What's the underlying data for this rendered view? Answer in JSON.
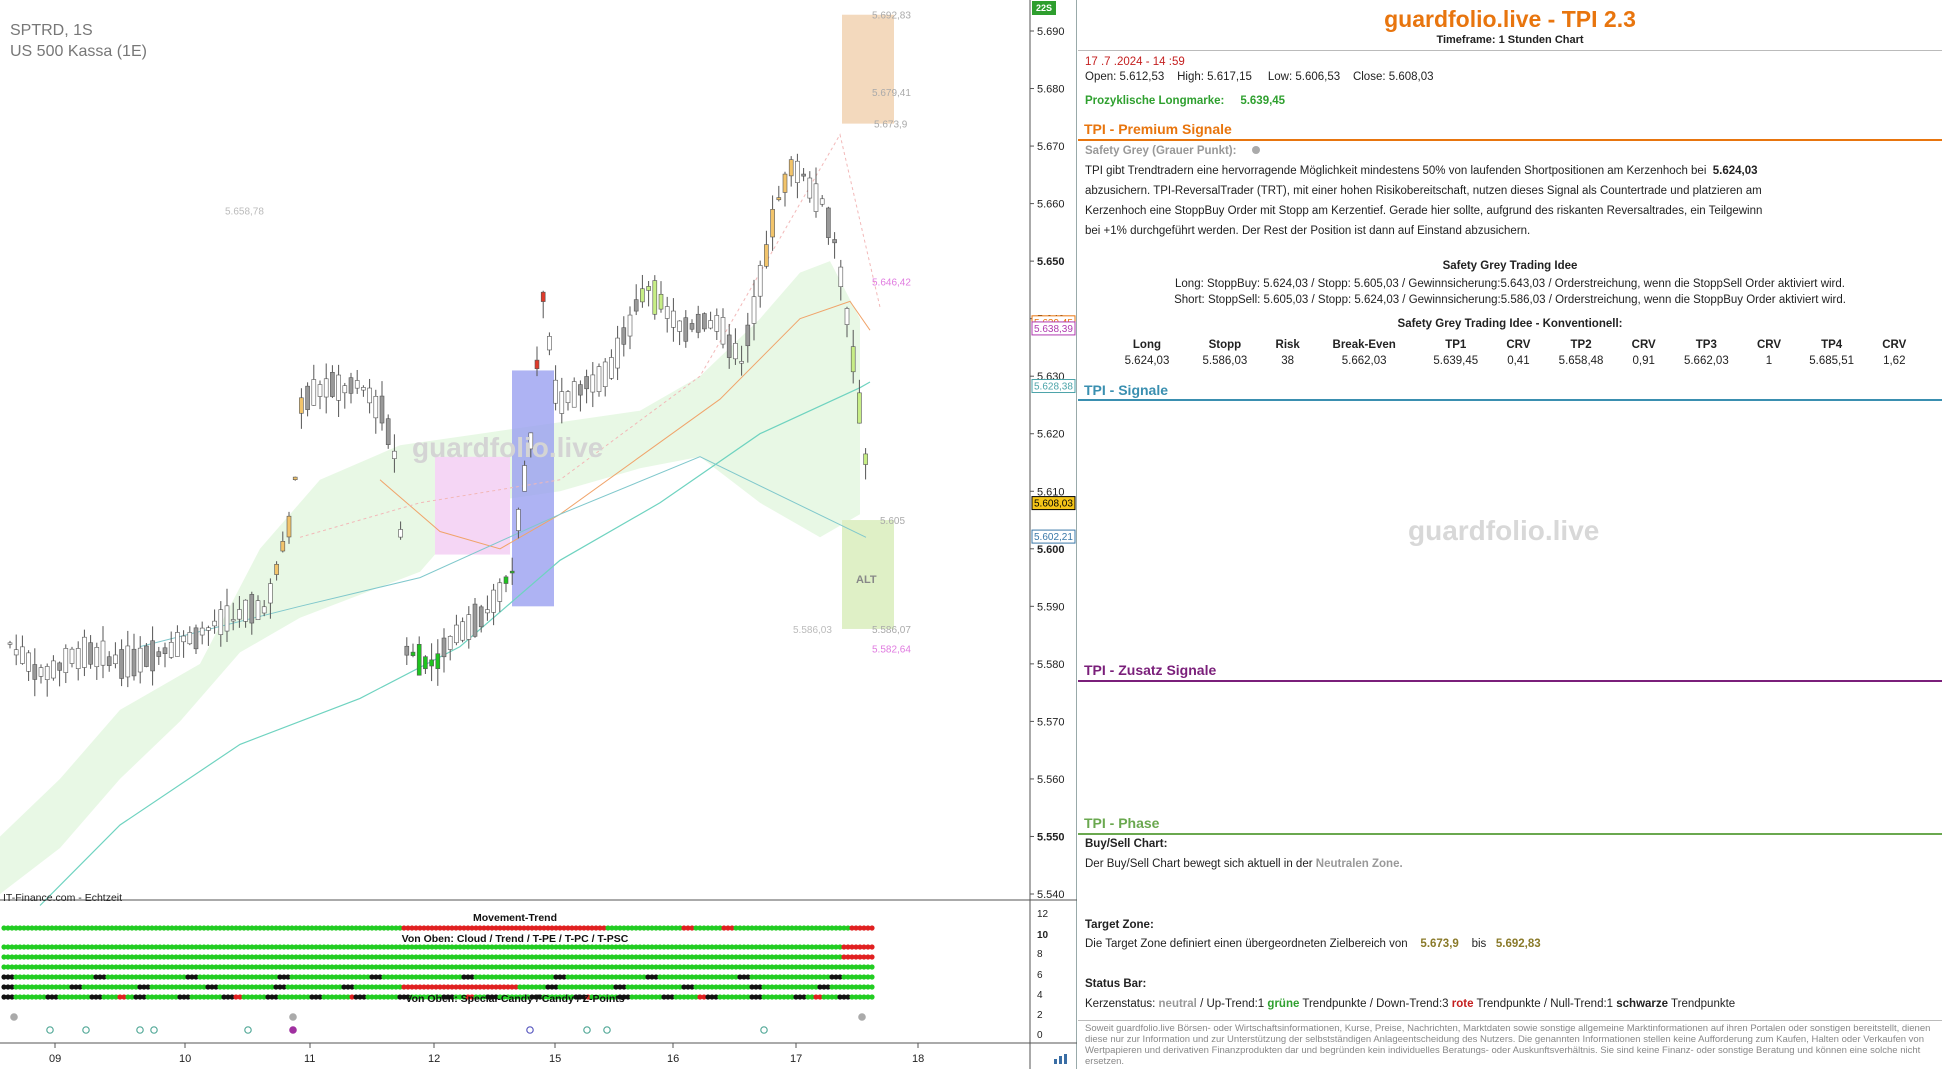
{
  "chart_header": {
    "symbol": "SPTRD, 1S",
    "instrument": "US 500 Kassa (1E)",
    "source": "IT-Finance.com - Echtzeit",
    "watermark": "guardfolio.live",
    "badge": "22S",
    "alt_label": "ALT",
    "movement_trend_title": "Movement-Trend",
    "rows_top_title": "Von Oben: Cloud / Trend / T-PE / T-PC / T-PSC",
    "rows_bottom_title": "Von Oben: Special-Candy / Candy / Z-Points"
  },
  "chart_data": {
    "type": "candlestick",
    "title": "SPTRD, 1S",
    "subtitle": "US 500 Kassa (1E)",
    "x_tick_labels": [
      "09",
      "10",
      "11",
      "12",
      "15",
      "16",
      "17",
      "18"
    ],
    "y_tick_labels": [
      "5.540",
      "5.550",
      "5.560",
      "5.570",
      "5.580",
      "5.590",
      "5.600",
      "5.610",
      "5.620",
      "5.630",
      "5.640",
      "5.650",
      "5.660",
      "5.670",
      "5.680",
      "5.690"
    ],
    "ylim": [
      5538,
      5694
    ],
    "ohlc": {
      "open": 5612.53,
      "high": 5617.15,
      "low": 5606.53,
      "close": 5608.03
    },
    "price_labels": [
      {
        "text": "5.692,83",
        "value": 5692.83,
        "color": "#aaaaaa"
      },
      {
        "text": "5.679,41",
        "value": 5679.41,
        "color": "#aaaaaa"
      },
      {
        "text": "5.673,9",
        "value": 5673.9,
        "color": "#aaaaaa"
      },
      {
        "text": "5.658,78",
        "value": 5658.78,
        "color": "#bbbbbb"
      },
      {
        "text": "5.646,42",
        "value": 5646.42,
        "color": "#e07be0"
      },
      {
        "text": "5.605",
        "value": 5605,
        "color": "#aaaaaa"
      },
      {
        "text": "5.586,07",
        "value": 5586.07,
        "color": "#aaaaaa"
      },
      {
        "text": "5.586,03",
        "value": 5586.03,
        "color": "#bbbbbb"
      },
      {
        "text": "5.582,64",
        "value": 5582.64,
        "color": "#e07be0"
      }
    ],
    "axis_markers": [
      {
        "text": "5.639,45",
        "value": 5639.45,
        "color": "#e8750e"
      },
      {
        "text": "5.638,39",
        "value": 5638.39,
        "color": "#b03ab0"
      },
      {
        "text": "5.628,38",
        "value": 5628.38,
        "color": "#4aa3a8"
      },
      {
        "text": "5.608,03",
        "value": 5608.03,
        "color": "#000000",
        "bg": "#f5c518"
      },
      {
        "text": "5.602,21",
        "value": 5602.21,
        "color": "#3a78a8"
      }
    ],
    "indicator_axis_labels": [
      "12",
      "10",
      "8",
      "6",
      "4",
      "2",
      "0"
    ],
    "target_zone": [
      5673.9,
      5692.83
    ],
    "entry_zone": [
      5586.07,
      5605
    ]
  },
  "info": {
    "brand": "guardfolio.live - TPI 2.3",
    "timeframe": "Timeframe: 1 Stunden Chart",
    "datetime": "17 .7 .2024  - 14 :59",
    "open_label": "Open:",
    "open": "5.612,53",
    "high_label": "High:",
    "high": "5.617,15",
    "low_label": "Low:",
    "low": "5.606,53",
    "close_label": "Close:",
    "close": "5.608,03",
    "longmark_label": "Prozyklische Longmarke:",
    "longmark": "5.639,45",
    "premium_title": "TPI - Premium Signale",
    "safety_grey_label": "Safety Grey (Grauer Punkt):",
    "premium_p1a": "TPI gibt Trendtradern eine hervorragende Möglichkeit mindestens 50% von laufenden Shortpositionen am Kerzenhoch bei",
    "premium_p1b": "5.624,03",
    "premium_l2": "abzusichern. TPI-ReversalTrader (TRT), mit einer hohen Risikobereitschaft, nutzen dieses Signal als Countertrade und platzieren am",
    "premium_l3": "Kerzenhoch eine StoppBuy Order mit Stopp am Kerzentief. Gerade hier sollte, aufgrund des riskanten Reversaltrades, ein Teilgewinn",
    "premium_l4": "bei +1% durchgeführt werden. Der Rest der Position ist dann auf Einstand abzusichern.",
    "idea_title": "Safety Grey Trading Idee",
    "idea_long": "Long: StoppBuy:  5.624,03 / Stopp: 5.605,03  / Gewinnsicherung:5.643,03  / Orderstreichung, wenn die StoppSell Order aktiviert wird.",
    "idea_short": "Short: StoppSell:  5.605,03 / Stopp: 5.624,03  / Gewinnsicherung:5.586,03  / Orderstreichung, wenn die StoppBuy Order aktiviert wird.",
    "konv_title": "Safety Grey Trading Idee - Konventionell:",
    "konv_headers": [
      "Long",
      "Stopp",
      "Risk",
      "Break-Even",
      "TP1",
      "CRV",
      "TP2",
      "CRV",
      "TP3",
      "CRV",
      "TP4",
      "CRV"
    ],
    "konv_values": [
      "5.624,03",
      "5.586,03",
      "38",
      "5.662,03",
      "5.639,45",
      "0,41",
      "5.658,48",
      "0,91",
      "5.662,03",
      "1",
      "5.685,51",
      "1,62"
    ],
    "signale_title": "TPI - Signale",
    "watermark": "guardfolio.live",
    "zusatz_title": "TPI - Zusatz Signale",
    "phase_title": "TPI - Phase",
    "buysell_title": "Buy/Sell Chart:",
    "buysell_text": "Der Buy/Sell Chart bewegt sich aktuell in der",
    "buysell_zone": "Neutralen Zone.",
    "target_title": "Target Zone:",
    "target_text": "Die Target Zone definiert einen übergeordneten Zielbereich von",
    "target_low": "5.673,9",
    "target_bis": "bis",
    "target_high": "5.692,83",
    "status_title": "Status Bar:",
    "status_k": "Kerzenstatus:",
    "status_neutral": "neutral",
    "status_up": "/ Up-Trend:1",
    "status_gruene": "grüne",
    "status_tp1": "Trendpunkte  / Down-Trend:3",
    "status_rote": "rote",
    "status_tp2": "Trendpunkte  / Null-Trend:1",
    "status_schwarze": "schwarze",
    "status_tp3": "Trendpunkte",
    "disclaimer": "Soweit guardfolio.live Börsen- oder Wirtschaftsinformationen, Kurse, Preise, Nachrichten, Marktdaten sowie sonstige allgemeine Marktinformationen auf ihren Portalen oder sonstigen bereitstellt, dienen diese nur zur Information und zur Unterstützung der selbstständigen Anlageentscheidung des Nutzers. Die genannten Informationen stellen keine Aufforderung zum Kaufen, Halten oder Verkaufen von Wertpapieren und derivativen Finanzprodukten dar und begründen kein individuelles Beratungs- oder Auskunftsverhältnis. Sie sind keine Finanz- oder sonstige Beratung und können eine solche nicht ersetzen."
  },
  "colors": {
    "brand": "#e8750e",
    "premium": "#e8750e",
    "signale": "#3a8fb0",
    "zusatz": "#7a1f7a",
    "phase": "#6aa84f"
  }
}
